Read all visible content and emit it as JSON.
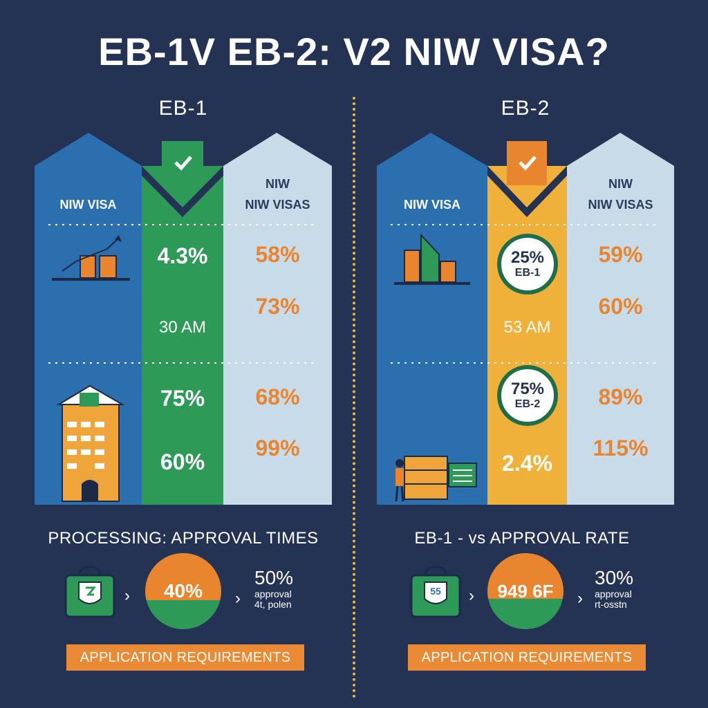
{
  "title": "EB-1V EB-2: V2 NIW VISA?",
  "left": {
    "heading": "EB-1",
    "col_left_label": "NIW VISA",
    "col_right_label_1": "NIW",
    "col_right_label_2": "NIW VISAS",
    "mid_values": [
      "4.3%",
      "30 AM",
      "75%",
      "60%"
    ],
    "right_values": [
      "58%",
      "73%",
      "68%",
      "99%"
    ],
    "section_title": "PROCESSING: APPROVAL TIMES",
    "circle_value": "40%",
    "stat_value": "50%",
    "stat_label_1": "approval",
    "stat_label_2": "4t, polen",
    "requirements_label": "APPLICATION REQUIREMENTS",
    "accent": "#2e9a58"
  },
  "right": {
    "heading": "EB-2",
    "col_left_label": "NIW VISA",
    "col_right_label_1": "NIW",
    "col_right_label_2": "NIW VISAS",
    "badge1_value": "25%",
    "badge1_sub": "EB-1",
    "badge2_value": "75%",
    "badge2_sub": "EB-2",
    "mid_values": [
      "53 AM",
      "2.4%"
    ],
    "right_values": [
      "59%",
      "60%",
      "89%",
      "115%"
    ],
    "section_title": "EB-1 - vs APPROVAL RATE",
    "circle_value": "949 6F",
    "stat_value": "30%",
    "stat_label_1": "approval",
    "stat_label_2": "rt-osstn",
    "requirements_label": "APPLICATION REQUIREMENTS",
    "accent": "#f0b13a"
  },
  "colors": {
    "background": "#243353",
    "blue": "#2b6fae",
    "light": "#c8dbe8",
    "orange": "#e9852e",
    "green": "#2e9a58",
    "yellow": "#f0b13a"
  }
}
